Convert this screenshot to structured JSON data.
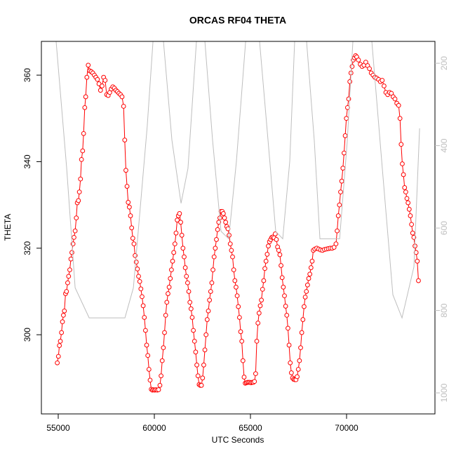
{
  "chart_data": {
    "type": "line",
    "title": "ORCAS RF04 THETA",
    "xlabel": "UTC Seconds",
    "ylabel": "THETA",
    "xlim": [
      54124,
      74599
    ],
    "xticks": [
      55000,
      60000,
      65000,
      70000
    ],
    "ylim": [
      281.7,
      367.8
    ],
    "yticks": [
      300,
      320,
      340,
      360
    ],
    "y2lim": [
      1051,
      147
    ],
    "y2ticks": [
      200,
      400,
      600,
      800,
      1000
    ],
    "series": [
      {
        "color": "#ff0000",
        "marker": "circle",
        "x": [
          54950,
          55010,
          55060,
          55110,
          55170,
          55220,
          55270,
          55320,
          55380,
          55430,
          55490,
          55540,
          55600,
          55660,
          55710,
          55770,
          55820,
          55880,
          55940,
          55990,
          56050,
          56100,
          56160,
          56210,
          56270,
          56320,
          56380,
          56430,
          56490,
          56560,
          56640,
          56720,
          56800,
          56880,
          56960,
          57040,
          57120,
          57200,
          57280,
          57360,
          57440,
          57520,
          57600,
          57680,
          57760,
          57840,
          57920,
          58000,
          58080,
          58160,
          58240,
          58320,
          58400,
          58460,
          58520,
          58580,
          58640,
          58700,
          58760,
          58820,
          58880,
          58940,
          59000,
          59060,
          59120,
          59180,
          59240,
          59300,
          59360,
          59420,
          59480,
          59540,
          59600,
          59660,
          59720,
          59780,
          59840,
          59900,
          59960,
          60020,
          60080,
          60150,
          60220,
          60290,
          60350,
          60410,
          60470,
          60530,
          60590,
          60650,
          60710,
          60770,
          60830,
          60890,
          60950,
          61010,
          61070,
          61130,
          61190,
          61250,
          61310,
          61370,
          61430,
          61490,
          61550,
          61610,
          61670,
          61730,
          61790,
          61850,
          61910,
          61970,
          62030,
          62090,
          62150,
          62210,
          62270,
          62330,
          62390,
          62450,
          62510,
          62570,
          62630,
          62690,
          62750,
          62810,
          62870,
          62930,
          62990,
          63050,
          63110,
          63170,
          63230,
          63290,
          63350,
          63410,
          63470,
          63530,
          63590,
          63650,
          63710,
          63770,
          63830,
          63890,
          63950,
          64010,
          64070,
          64130,
          64190,
          64250,
          64310,
          64370,
          64430,
          64490,
          64550,
          64610,
          64670,
          64730,
          64790,
          64850,
          64910,
          64970,
          65030,
          65090,
          65150,
          65210,
          65270,
          65330,
          65390,
          65450,
          65510,
          65570,
          65630,
          65690,
          65750,
          65810,
          65870,
          65930,
          65990,
          66050,
          66110,
          66170,
          66230,
          66290,
          66350,
          66410,
          66470,
          66530,
          66590,
          66650,
          66710,
          66770,
          66830,
          66890,
          66950,
          67010,
          67070,
          67130,
          67190,
          67250,
          67310,
          67370,
          67430,
          67490,
          67550,
          67610,
          67670,
          67730,
          67790,
          67850,
          67910,
          67970,
          68030,
          68090,
          68150,
          68210,
          68270,
          68350,
          68450,
          68550,
          68650,
          68750,
          68850,
          68950,
          69050,
          69150,
          69250,
          69350,
          69450,
          69510,
          69570,
          69630,
          69690,
          69750,
          69810,
          69870,
          69930,
          69990,
          70050,
          70110,
          70170,
          70230,
          70290,
          70350,
          70410,
          70470,
          70530,
          70620,
          70715,
          70810,
          70905,
          71000,
          71095,
          71190,
          71285,
          71380,
          71475,
          71570,
          71665,
          71760,
          71855,
          71950,
          72045,
          72140,
          72235,
          72330,
          72425,
          72520,
          72615,
          72710,
          72780,
          72840,
          72900,
          72960,
          73020,
          73080,
          73140,
          73200,
          73260,
          73320,
          73380,
          73440,
          73500,
          73560,
          73620,
          73680,
          73740
        ],
        "values": [
          293.5,
          295,
          297.5,
          298.5,
          300.5,
          303,
          304.5,
          305.5,
          309.5,
          310,
          312,
          313.5,
          315,
          317.5,
          319,
          321,
          322.5,
          324,
          327,
          330.5,
          331,
          333,
          336,
          340.5,
          342.5,
          346.5,
          352.5,
          355,
          359.5,
          362.3,
          361,
          360.8,
          360.5,
          360,
          359.5,
          359,
          358,
          356.5,
          357.5,
          359.5,
          358.8,
          355.5,
          355.3,
          356,
          356.8,
          357.3,
          357,
          356.5,
          356.2,
          355.8,
          355.5,
          355,
          352.8,
          345,
          338,
          334.3,
          330.6,
          329.5,
          327.5,
          324.7,
          322.3,
          321,
          318.3,
          316.8,
          315.2,
          313.5,
          312.3,
          310.6,
          308.8,
          306.7,
          304,
          301,
          297.6,
          295.2,
          292,
          289.5,
          287.4,
          287.2,
          287.3,
          287.2,
          287.3,
          287.2,
          287.3,
          288.3,
          290.5,
          294,
          297,
          300.5,
          304.5,
          307.5,
          309.5,
          311,
          313,
          315,
          317,
          319,
          321,
          323.5,
          326.5,
          327.5,
          328,
          326,
          323,
          320,
          318,
          315.5,
          313.5,
          312,
          310,
          307.5,
          306,
          304,
          301,
          298.5,
          296,
          293,
          290.5,
          288.5,
          288.3,
          288.3,
          290,
          293,
          296.5,
          300,
          303.5,
          305.5,
          308,
          310,
          312,
          315,
          318,
          320,
          322,
          324.3,
          326,
          327,
          328.5,
          328.5,
          328,
          327,
          326,
          325,
          324.5,
          323,
          321,
          319.5,
          318,
          315,
          312.5,
          311,
          309,
          306.5,
          304,
          300.7,
          298.5,
          294,
          290.2,
          288.8,
          288.9,
          289,
          289,
          289,
          288.9,
          289,
          289,
          289.2,
          291,
          298.5,
          302.7,
          305,
          306.7,
          308,
          310.5,
          312.5,
          315.3,
          317,
          318.6,
          320.5,
          321.5,
          322,
          322.5,
          322.6,
          322.4,
          323.3,
          322,
          320.3,
          319.5,
          318.5,
          316,
          313.2,
          311,
          309,
          306.6,
          304.5,
          301.5,
          297.6,
          293.5,
          291.2,
          290,
          289.7,
          289.6,
          289.6,
          290.3,
          292,
          294,
          297,
          300.5,
          303.5,
          306.5,
          308.7,
          310,
          311.5,
          313,
          314,
          315.5,
          317,
          319.5,
          319.8,
          320,
          319.8,
          319.6,
          319.5,
          319.7,
          319.8,
          319.9,
          320,
          320,
          320.2,
          321,
          324,
          327.5,
          330,
          333,
          335.5,
          338.5,
          342,
          346,
          350,
          352.5,
          354.5,
          358.5,
          360.5,
          362,
          363.5,
          364,
          364.5,
          364.2,
          363.5,
          362.5,
          362,
          362.3,
          363,
          362.2,
          361.5,
          360.5,
          360,
          359.5,
          359.3,
          359,
          358.5,
          358.8,
          357.5,
          356,
          355.5,
          356,
          355.8,
          355,
          354.5,
          353.5,
          353,
          350,
          344,
          339.5,
          337,
          334,
          333,
          331.5,
          330.5,
          329,
          327.5,
          325.5,
          323.5,
          322.5,
          320.5,
          319,
          317,
          312.5
        ]
      },
      {
        "color": "#bebebe",
        "axis": "y2",
        "x": [
          54890,
          55440,
          55880,
          56280,
          56610,
          58470,
          58910,
          59630,
          59930,
          60200,
          60475,
          60915,
          61390,
          61750,
          62190,
          62400,
          62630,
          63030,
          63470,
          63870,
          64270,
          64750,
          65100,
          65475,
          65915,
          66315,
          66680,
          67045,
          67300,
          67600,
          67920,
          68320,
          68615,
          69640,
          70040,
          70330,
          70800,
          71315,
          71860,
          72410,
          72885,
          73505,
          73800
        ],
        "values": [
          147,
          455,
          745,
          785,
          818,
          818,
          745,
          353,
          147,
          null,
          147,
          387,
          540,
          455,
          147,
          null,
          147,
          387,
          608,
          626,
          438,
          147,
          null,
          147,
          387,
          608,
          626,
          438,
          147,
          null,
          147,
          387,
          626,
          626,
          387,
          147,
          null,
          147,
          455,
          762,
          818,
          694,
          358
        ]
      }
    ]
  }
}
